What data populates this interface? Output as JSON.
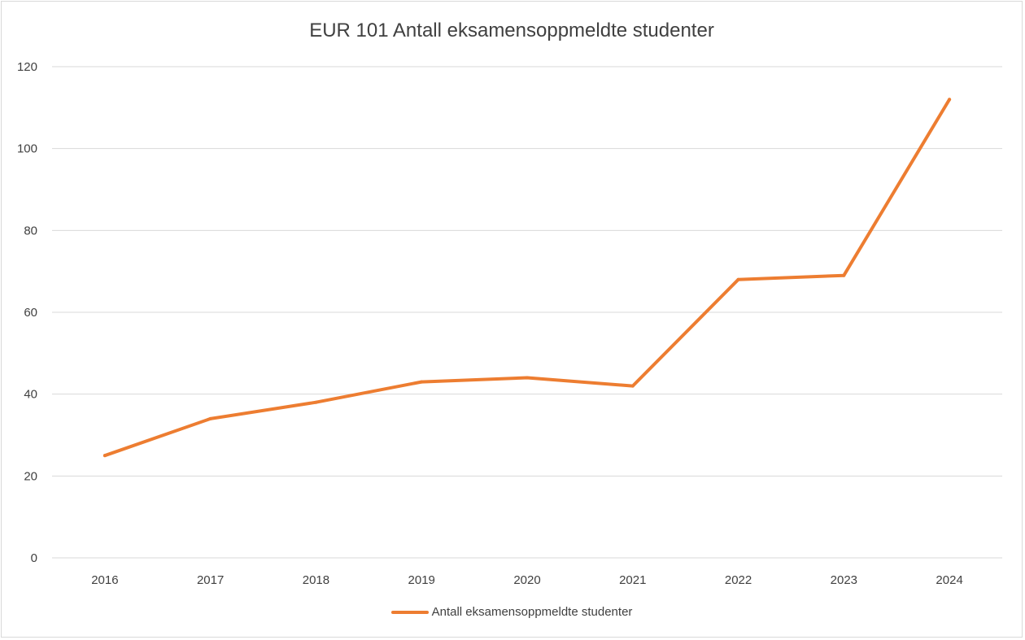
{
  "chart_data": {
    "type": "line",
    "title": "EUR 101 Antall eksamensoppmeldte studenter",
    "xlabel": "",
    "ylabel": "",
    "categories": [
      "2016",
      "2017",
      "2018",
      "2019",
      "2020",
      "2021",
      "2022",
      "2023",
      "2024"
    ],
    "series": [
      {
        "name": "Antall eksamensoppmeldte studenter",
        "color": "#ed7d31",
        "values": [
          25,
          34,
          38,
          43,
          44,
          42,
          68,
          69,
          112
        ]
      }
    ],
    "ylim": [
      0,
      120
    ],
    "yticks": [
      "0",
      "20",
      "40",
      "60",
      "80",
      "100",
      "120"
    ],
    "grid": true,
    "legend_position": "bottom"
  },
  "colors": {
    "gridline": "#d9d9d9",
    "text": "#404040"
  }
}
